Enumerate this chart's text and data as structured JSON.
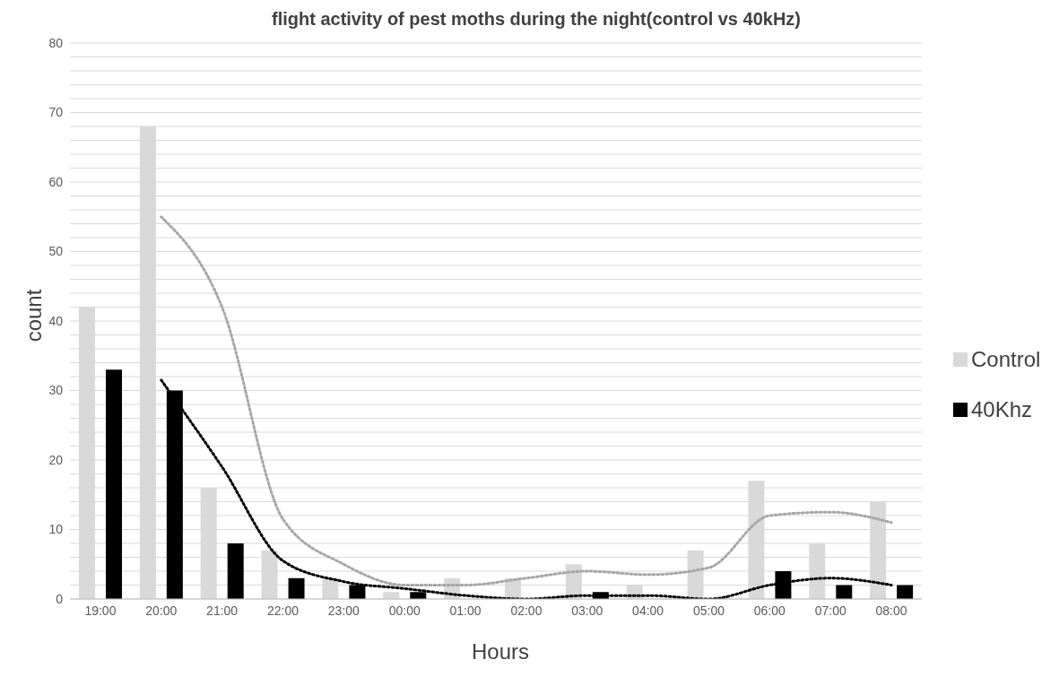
{
  "chart_data": {
    "type": "bar",
    "title": "flight activity of pest moths during the night(control vs 40kHz)",
    "xlabel": "Hours",
    "ylabel": "count",
    "categories": [
      "19:00",
      "20:00",
      "21:00",
      "22:00",
      "23:00",
      "00:00",
      "01:00",
      "02:00",
      "03:00",
      "04:00",
      "05:00",
      "06:00",
      "07:00",
      "08:00"
    ],
    "series": [
      {
        "name": "Control",
        "color": "#d9d9d9",
        "values": [
          42,
          68,
          16,
          7,
          3,
          1,
          3,
          3,
          5,
          2,
          7,
          17,
          8,
          14
        ]
      },
      {
        "name": "40Khz",
        "color": "#000000",
        "values": [
          33,
          30,
          8,
          3,
          2,
          1,
          0,
          0,
          1,
          0,
          0,
          4,
          2,
          2
        ]
      },
      {
        "type": "line",
        "color": "#a6a6a6",
        "line_style": "dotted",
        "x": [
          "20:00",
          "21:00",
          "22:00",
          "23:00",
          "00:00",
          "01:00",
          "02:00",
          "03:00",
          "04:00",
          "05:00",
          "06:00",
          "07:00",
          "08:00"
        ],
        "values": [
          55,
          42,
          11.5,
          5,
          2,
          2,
          3,
          4,
          3.5,
          4.5,
          12,
          12.5,
          11
        ]
      },
      {
        "type": "line",
        "color": "#000000",
        "line_style": "dotted",
        "x": [
          "20:00",
          "21:00",
          "22:00",
          "23:00",
          "00:00",
          "01:00",
          "02:00",
          "03:00",
          "04:00",
          "05:00",
          "06:00",
          "07:00",
          "08:00"
        ],
        "values": [
          31.5,
          19,
          5.5,
          2.5,
          1.5,
          0.5,
          0,
          0.5,
          0.5,
          0,
          2,
          3,
          2
        ]
      }
    ],
    "ylim": [
      0,
      80
    ],
    "yticks": [
      0,
      {
        "value": 2,
        "label": null
      },
      {
        "value": 4,
        "label": null
      },
      {
        "value": 6,
        "label": null
      },
      {
        "value": 8,
        "label": null
      },
      10,
      {
        "value": 12,
        "label": null
      },
      {
        "value": 14,
        "label": null
      },
      {
        "value": 16,
        "label": null
      },
      {
        "value": 18,
        "label": null
      },
      20,
      {
        "value": 22,
        "label": null
      },
      {
        "value": 24,
        "label": null
      },
      {
        "value": 26,
        "label": null
      },
      {
        "value": 28,
        "label": null
      },
      30,
      {
        "value": 32,
        "label": null
      },
      {
        "value": 34,
        "label": null
      },
      {
        "value": 36,
        "label": null
      },
      {
        "value": 38,
        "label": null
      },
      40,
      {
        "value": 42,
        "label": null
      },
      {
        "value": 44,
        "label": null
      },
      {
        "value": 46,
        "label": null
      },
      {
        "value": 48,
        "label": null
      },
      50,
      {
        "value": 52,
        "label": null
      },
      {
        "value": 54,
        "label": null
      },
      {
        "value": 56,
        "label": null
      },
      {
        "value": 58,
        "label": null
      },
      60,
      {
        "value": 62,
        "label": null
      },
      {
        "value": 64,
        "label": null
      },
      {
        "value": 66,
        "label": null
      },
      {
        "value": 68,
        "label": null
      },
      70,
      {
        "value": 72,
        "label": null
      },
      {
        "value": 74,
        "label": null
      },
      {
        "value": 76,
        "label": null
      },
      {
        "value": 78,
        "label": null
      },
      80
    ],
    "grid": "y",
    "legend": "right",
    "marker": "none"
  }
}
